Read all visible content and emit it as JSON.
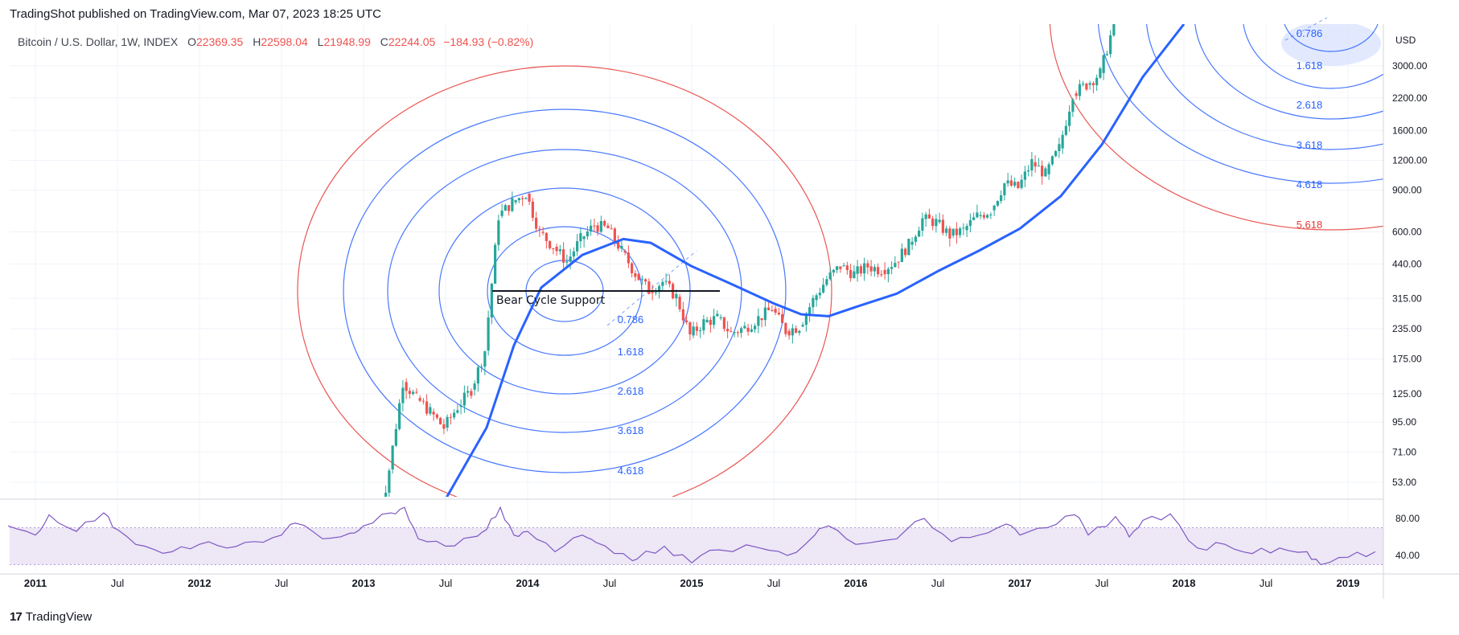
{
  "header": {
    "published": "TradingShot published on TradingView.com, Mar 07, 2023 18:25 UTC"
  },
  "symbol": {
    "name": "Bitcoin / U.S. Dollar, 1W, INDEX",
    "open_label": "O",
    "open": "22369.35",
    "high_label": "H",
    "high": "22598.04",
    "low_label": "L",
    "low": "21948.99",
    "close_label": "C",
    "close": "22244.05",
    "change": "−184.93 (−0.82%)"
  },
  "price_axis": {
    "currency": "USD",
    "ticks": [
      "3000.00",
      "2200.00",
      "1600.00",
      "1200.00",
      "900.00",
      "600.00",
      "440.00",
      "315.00",
      "235.00",
      "175.00",
      "125.00",
      "95.00",
      "71.00",
      "53.00"
    ]
  },
  "rsi_axis": {
    "ticks": [
      "80.00",
      "40.00"
    ]
  },
  "time_axis": {
    "labels": [
      "2011",
      "Jul",
      "2012",
      "Jul",
      "2013",
      "Jul",
      "2014",
      "Jul",
      "2015",
      "Jul",
      "2016",
      "Jul",
      "2017",
      "Jul",
      "2018",
      "Jul",
      "2019"
    ]
  },
  "annotations": {
    "support_label": "Bear Cycle Support",
    "fib_left": [
      "0.786",
      "1.618",
      "2.618",
      "3.618",
      "4.618"
    ],
    "fib_right": [
      "0.786",
      "1.618",
      "2.618",
      "3.618",
      "4.618",
      "5.618"
    ]
  },
  "footer": {
    "brand": "TradingView"
  },
  "colors": {
    "up_candle": "#26a69a",
    "down_candle": "#ef5350",
    "fib_blue": "#2962ff",
    "fib_red": "#e53935",
    "ma_line": "#2962ff",
    "rsi_line": "#7e57c2",
    "rsi_band": "#ede7f6"
  },
  "chart_data": {
    "type": "line",
    "title": "",
    "xlabel": "",
    "ylabel": "",
    "scale": "log",
    "ylim": [
      48,
      4500
    ],
    "x_range": [
      "2010-11",
      "2019-03"
    ],
    "series": [
      {
        "name": "",
        "kind": "weekly-close-approx",
        "points": [
          [
            "2013-02",
            30
          ],
          [
            "2013-03",
            60
          ],
          [
            "2013-04",
            140
          ],
          [
            "2013-05",
            120
          ],
          [
            "2013-06",
            105
          ],
          [
            "2013-07",
            90
          ],
          [
            "2013-08",
            110
          ],
          [
            "2013-09",
            130
          ],
          [
            "2013-10",
            190
          ],
          [
            "2013-11",
            700
          ],
          [
            "2013-12",
            800
          ],
          [
            "2014-01",
            870
          ],
          [
            "2014-02",
            600
          ],
          [
            "2014-03",
            520
          ],
          [
            "2014-04",
            450
          ],
          [
            "2014-05",
            560
          ],
          [
            "2014-06",
            640
          ],
          [
            "2014-07",
            620
          ],
          [
            "2014-08",
            500
          ],
          [
            "2014-09",
            400
          ],
          [
            "2014-10",
            340
          ],
          [
            "2014-11",
            370
          ],
          [
            "2014-12",
            320
          ],
          [
            "2015-01",
            220
          ],
          [
            "2015-02",
            250
          ],
          [
            "2015-03",
            260
          ],
          [
            "2015-04",
            225
          ],
          [
            "2015-05",
            237
          ],
          [
            "2015-06",
            260
          ],
          [
            "2015-07",
            285
          ],
          [
            "2015-08",
            230
          ],
          [
            "2015-09",
            240
          ],
          [
            "2015-10",
            310
          ],
          [
            "2015-11",
            380
          ],
          [
            "2015-12",
            430
          ],
          [
            "2016-01",
            400
          ],
          [
            "2016-02",
            430
          ],
          [
            "2016-03",
            415
          ],
          [
            "2016-04",
            450
          ],
          [
            "2016-05",
            530
          ],
          [
            "2016-06",
            680
          ],
          [
            "2016-07",
            660
          ],
          [
            "2016-08",
            580
          ],
          [
            "2016-09",
            610
          ],
          [
            "2016-10",
            700
          ],
          [
            "2016-11",
            740
          ],
          [
            "2016-12",
            960
          ],
          [
            "2017-01",
            920
          ],
          [
            "2017-02",
            1180
          ],
          [
            "2017-03",
            1050
          ],
          [
            "2017-04",
            1350
          ],
          [
            "2017-05",
            2300
          ],
          [
            "2017-06",
            2500
          ],
          [
            "2017-07",
            2800
          ],
          [
            "2017-08",
            4500
          ]
        ]
      },
      {
        "name": "",
        "kind": "moving-average-approx",
        "points": [
          [
            "2013-07",
            45
          ],
          [
            "2013-10",
            90
          ],
          [
            "2013-12",
            200
          ],
          [
            "2014-02",
            350
          ],
          [
            "2014-05",
            480
          ],
          [
            "2014-08",
            560
          ],
          [
            "2014-10",
            540
          ],
          [
            "2015-01",
            430
          ],
          [
            "2015-04",
            360
          ],
          [
            "2015-07",
            300
          ],
          [
            "2015-09",
            270
          ],
          [
            "2015-11",
            265
          ],
          [
            "2016-01",
            290
          ],
          [
            "2016-04",
            330
          ],
          [
            "2016-07",
            410
          ],
          [
            "2016-10",
            500
          ],
          [
            "2017-01",
            620
          ],
          [
            "2017-04",
            850
          ],
          [
            "2017-07",
            1400
          ],
          [
            "2017-10",
            2700
          ],
          [
            "2018-01",
            4500
          ]
        ]
      },
      {
        "name": "",
        "kind": "rsi",
        "ylim": [
          25,
          95
        ],
        "points": [
          [
            "2010-11",
            72
          ],
          [
            "2011-01",
            62
          ],
          [
            "2011-02",
            84
          ],
          [
            "2011-04",
            66
          ],
          [
            "2011-06",
            86
          ],
          [
            "2011-07",
            68
          ],
          [
            "2011-09",
            50
          ],
          [
            "2011-11",
            44
          ],
          [
            "2012-01",
            52
          ],
          [
            "2012-03",
            48
          ],
          [
            "2012-05",
            55
          ],
          [
            "2012-07",
            62
          ],
          [
            "2012-08",
            75
          ],
          [
            "2012-10",
            58
          ],
          [
            "2012-12",
            64
          ],
          [
            "2013-01",
            72
          ],
          [
            "2013-03",
            86
          ],
          [
            "2013-04",
            92
          ],
          [
            "2013-05",
            58
          ],
          [
            "2013-07",
            50
          ],
          [
            "2013-09",
            60
          ],
          [
            "2013-10",
            68
          ],
          [
            "2013-11",
            92
          ],
          [
            "2013-12",
            62
          ],
          [
            "2014-01",
            66
          ],
          [
            "2014-03",
            44
          ],
          [
            "2014-05",
            62
          ],
          [
            "2014-06",
            54
          ],
          [
            "2014-08",
            42
          ],
          [
            "2014-09",
            36
          ],
          [
            "2014-11",
            50
          ],
          [
            "2015-01",
            32
          ],
          [
            "2015-03",
            46
          ],
          [
            "2015-06",
            48
          ],
          [
            "2015-08",
            40
          ],
          [
            "2015-10",
            62
          ],
          [
            "2015-11",
            72
          ],
          [
            "2016-01",
            52
          ],
          [
            "2016-04",
            58
          ],
          [
            "2016-06",
            80
          ],
          [
            "2016-08",
            55
          ],
          [
            "2016-10",
            62
          ],
          [
            "2016-12",
            74
          ],
          [
            "2017-01",
            62
          ],
          [
            "2017-03",
            70
          ],
          [
            "2017-05",
            84
          ],
          [
            "2017-06",
            62
          ],
          [
            "2017-08",
            82
          ],
          [
            "2017-09",
            60
          ],
          [
            "2017-10",
            78
          ],
          [
            "2017-12",
            85
          ],
          [
            "2018-02",
            48
          ],
          [
            "2018-04",
            52
          ],
          [
            "2018-06",
            42
          ],
          [
            "2018-08",
            48
          ],
          [
            "2018-10",
            44
          ],
          [
            "2018-11",
            30
          ],
          [
            "2019-01",
            38
          ],
          [
            "2019-03",
            44
          ]
        ]
      }
    ]
  }
}
